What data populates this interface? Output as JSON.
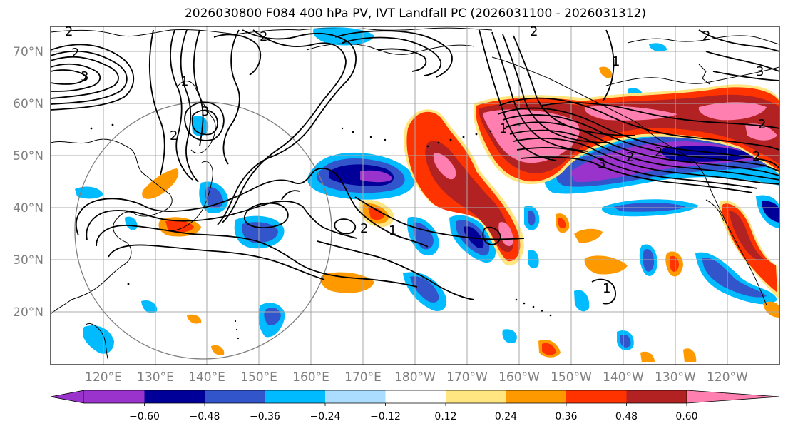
{
  "title": "2026030800 F084 400 hPa PV, IVT Landfall PC (2026031100 - 2026031312)",
  "lat_labels": [
    "70°N",
    "60°N",
    "50°N",
    "40°N",
    "30°N",
    "20°N"
  ],
  "lon_labels": [
    "120°E",
    "130°E",
    "140°E",
    "150°E",
    "160°E",
    "170°E",
    "180°W",
    "170°W",
    "160°W",
    "150°W",
    "140°W",
    "130°W",
    "120°W"
  ],
  "contour_labels": [
    "2",
    "2",
    "3",
    "2",
    "3",
    "1",
    "2",
    "2",
    "1",
    "2",
    "3",
    "2",
    "2",
    "3",
    "2",
    "1",
    "1",
    "2",
    "1",
    "2"
  ],
  "colorbar": {
    "colors": [
      "#9933cc",
      "#000099",
      "#3355cc",
      "#00bbff",
      "#aaddff",
      "#ffffff",
      "#ffe680",
      "#ff9900",
      "#ff3300",
      "#b22222",
      "#ff80b0"
    ],
    "tick_labels": [
      "−0.60",
      "−0.48",
      "−0.36",
      "−0.24",
      "−0.12",
      "0.12",
      "0.24",
      "0.36",
      "0.48",
      "0.60"
    ]
  }
}
